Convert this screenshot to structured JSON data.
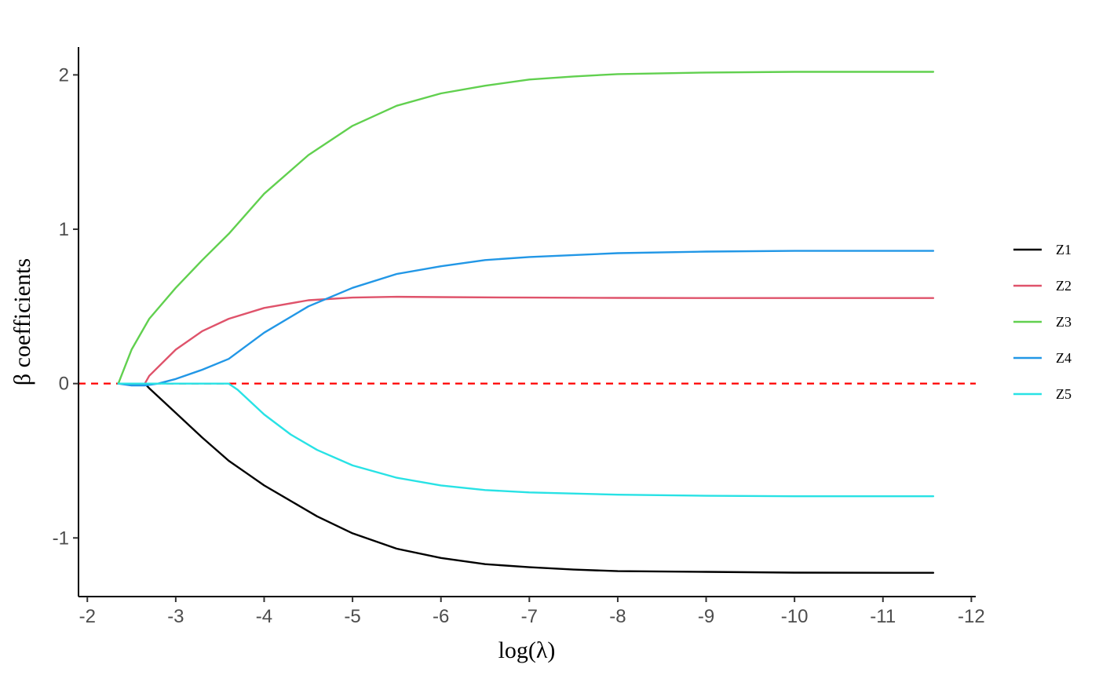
{
  "chart_data": {
    "type": "line",
    "title": "",
    "xlabel": "log(λ)",
    "ylabel": "β coefficients",
    "xlim": [
      -1.9,
      -12.05
    ],
    "ylim": [
      -1.38,
      2.18
    ],
    "x_reversed": true,
    "x_ticks": [
      -2,
      -3,
      -4,
      -5,
      -6,
      -7,
      -8,
      -9,
      -10,
      -11,
      -12
    ],
    "y_ticks": [
      -1,
      0,
      1,
      2
    ],
    "x_tick_labels": [
      "-2",
      "-3",
      "-4",
      "-5",
      "-6",
      "-7",
      "-8",
      "-9",
      "-10",
      "-11",
      "-12"
    ],
    "y_tick_labels": [
      "-1",
      "0",
      "1",
      "2"
    ],
    "grid": false,
    "legend_position": "right",
    "reference_line": {
      "y": 0,
      "style": "dashed",
      "color": "#ff0000"
    },
    "series": [
      {
        "name": "Z1",
        "color": "#000000",
        "x": [
          -2.35,
          -2.65,
          -2.7,
          -3.0,
          -3.3,
          -3.6,
          -3.8,
          -4.0,
          -4.3,
          -4.6,
          -5.0,
          -5.5,
          -6.0,
          -6.5,
          -7.0,
          -7.5,
          -8.0,
          -9.0,
          -10.0,
          -11.57
        ],
        "y": [
          0,
          0,
          -0.03,
          -0.19,
          -0.35,
          -0.5,
          -0.58,
          -0.66,
          -0.76,
          -0.86,
          -0.97,
          -1.07,
          -1.13,
          -1.17,
          -1.19,
          -1.205,
          -1.215,
          -1.22,
          -1.225,
          -1.226
        ]
      },
      {
        "name": "Z2",
        "color": "#df536b",
        "x": [
          -2.35,
          -2.65,
          -2.7,
          -3.0,
          -3.3,
          -3.6,
          -4.0,
          -4.5,
          -5.0,
          -5.5,
          -6.0,
          -7.0,
          -8.0,
          -9.0,
          -10.0,
          -11.57
        ],
        "y": [
          0,
          0,
          0.05,
          0.22,
          0.34,
          0.42,
          0.49,
          0.54,
          0.557,
          0.562,
          0.56,
          0.557,
          0.555,
          0.554,
          0.554,
          0.554
        ]
      },
      {
        "name": "Z3",
        "color": "#61d04f",
        "x": [
          -2.35,
          -2.5,
          -2.7,
          -3.0,
          -3.3,
          -3.6,
          -4.0,
          -4.5,
          -5.0,
          -5.5,
          -6.0,
          -6.5,
          -7.0,
          -7.5,
          -8.0,
          -9.0,
          -10.0,
          -11.57
        ],
        "y": [
          0,
          0.22,
          0.42,
          0.62,
          0.8,
          0.97,
          1.23,
          1.48,
          1.67,
          1.8,
          1.88,
          1.93,
          1.97,
          1.99,
          2.005,
          2.015,
          2.02,
          2.02
        ]
      },
      {
        "name": "Z4",
        "color": "#2297e6",
        "x": [
          -2.35,
          -2.5,
          -2.65,
          -2.8,
          -3.0,
          -3.3,
          -3.6,
          -4.0,
          -4.5,
          -5.0,
          -5.5,
          -6.0,
          -6.5,
          -7.0,
          -8.0,
          -9.0,
          -10.0,
          -11.57
        ],
        "y": [
          0,
          -0.012,
          -0.012,
          0,
          0.03,
          0.09,
          0.16,
          0.33,
          0.5,
          0.62,
          0.71,
          0.76,
          0.8,
          0.82,
          0.845,
          0.855,
          0.86,
          0.86
        ]
      },
      {
        "name": "Z5",
        "color": "#28e2e5",
        "x": [
          -2.35,
          -3.6,
          -3.7,
          -4.0,
          -4.3,
          -4.6,
          -5.0,
          -5.5,
          -6.0,
          -6.5,
          -7.0,
          -8.0,
          -9.0,
          -10.0,
          -11.57
        ],
        "y": [
          0,
          0,
          -0.04,
          -0.2,
          -0.33,
          -0.43,
          -0.53,
          -0.61,
          -0.66,
          -0.69,
          -0.705,
          -0.72,
          -0.727,
          -0.73,
          -0.73
        ]
      }
    ]
  }
}
